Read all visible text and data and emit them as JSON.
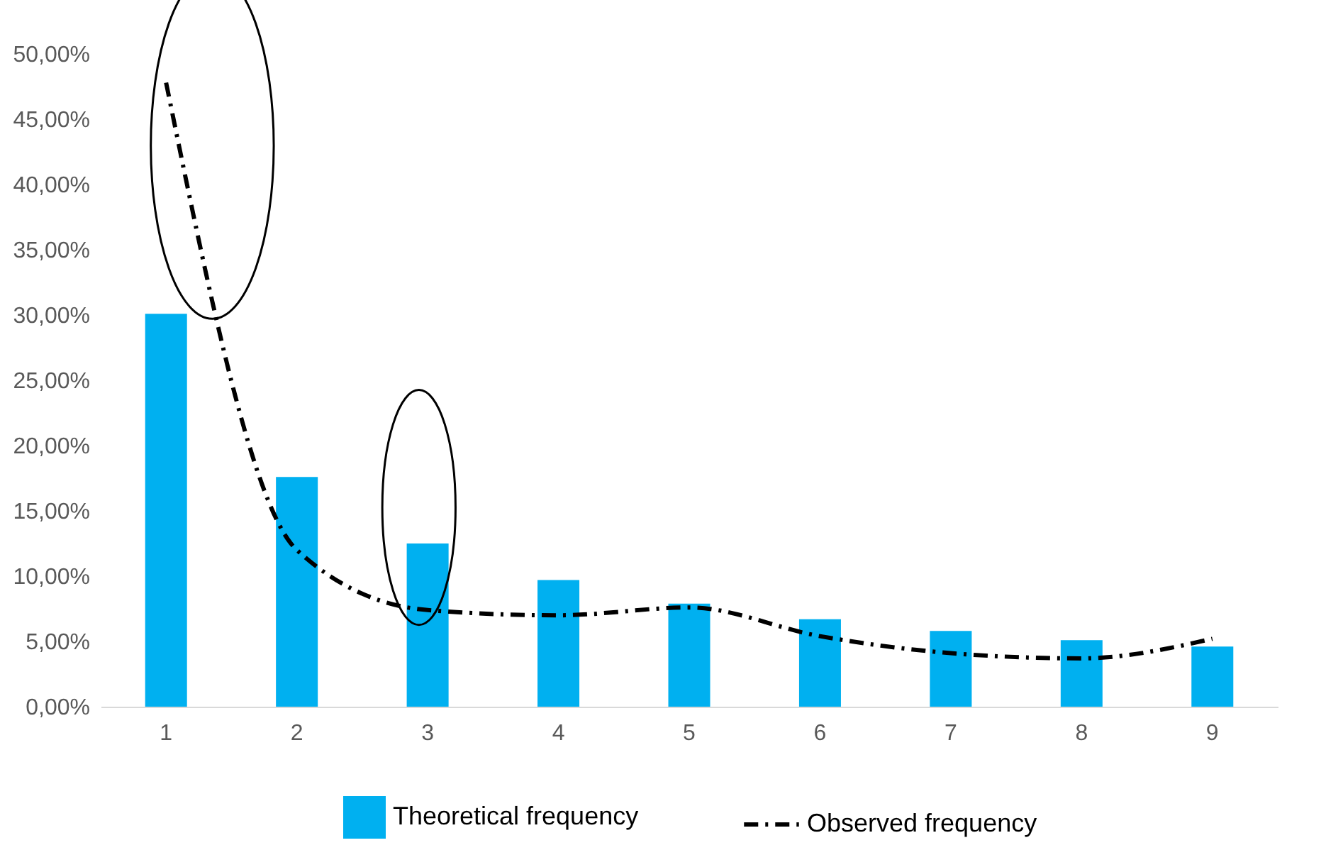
{
  "chart_data": {
    "type": "bar",
    "categories": [
      "1",
      "2",
      "3",
      "4",
      "5",
      "6",
      "7",
      "8",
      "9"
    ],
    "series": [
      {
        "name": "Theoretical frequency",
        "color": "#00b0f0",
        "values": [
          30.1,
          17.6,
          12.5,
          9.7,
          7.9,
          6.7,
          5.8,
          5.1,
          4.6
        ]
      },
      {
        "name": "Observed frequency",
        "type": "line",
        "color": "#000000",
        "line_style": "dashed",
        "marker": "none",
        "values": [
          47.8,
          12.0,
          7.4,
          7.0,
          7.6,
          5.4,
          4.1,
          3.7,
          5.2
        ]
      }
    ],
    "ylim": [
      0,
      50
    ],
    "yticks": [
      {
        "value": 0,
        "label": "0,00%"
      },
      {
        "value": 5,
        "label": "5,00%"
      },
      {
        "value": 10,
        "label": "10,00%"
      },
      {
        "value": 15,
        "label": "15,00%"
      },
      {
        "value": 20,
        "label": "20,00%"
      },
      {
        "value": 25,
        "label": "25,00%"
      },
      {
        "value": 30,
        "label": "30,00%"
      },
      {
        "value": 35,
        "label": "35,00%"
      },
      {
        "value": 40,
        "label": "40,00%"
      },
      {
        "value": 45,
        "label": "45,00%"
      },
      {
        "value": 50,
        "label": "50,00%"
      }
    ],
    "grid": false,
    "legend": "bottom"
  }
}
